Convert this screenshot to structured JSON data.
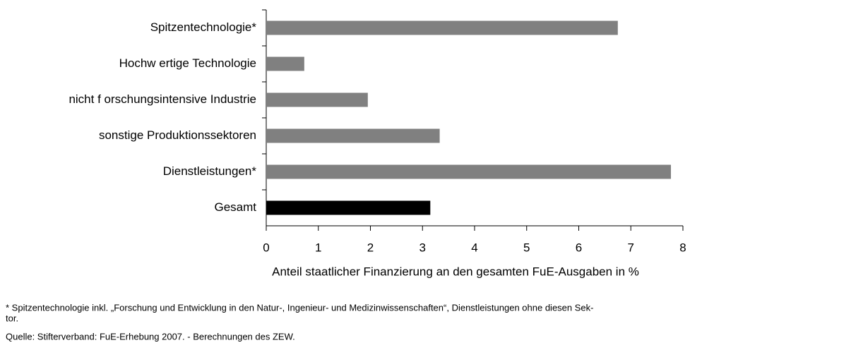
{
  "chart_data": {
    "type": "bar",
    "orientation": "horizontal",
    "categories": [
      "Spitzentechnologie*",
      "Hochw ertige Technologie",
      "nicht f orschungsintensive Industrie",
      "sonstige Produktionssektoren",
      "Dienstleistungen*",
      "Gesamt"
    ],
    "values": [
      6.75,
      0.73,
      1.95,
      3.33,
      7.77,
      3.15
    ],
    "colors": [
      "#808080",
      "#808080",
      "#808080",
      "#808080",
      "#808080",
      "#000000"
    ],
    "xlim": [
      0,
      8
    ],
    "xticks": [
      0,
      1,
      2,
      3,
      4,
      5,
      6,
      7,
      8
    ],
    "x_label": "Anteil staatlicher Finanzierung an den gesamten FuE-Ausgaben in %",
    "grid": false
  },
  "footnote": [
    "* Spitzentechnologie inkl. „Forschung und Entwicklung in den Natur-, Ingenieur- und Medizinwissenschaften“, Dienstleistungen ohne diesen Sek-",
    "tor."
  ],
  "source": "Quelle: Stifterverband: FuE-Erhebung 2007. - Berechnungen des ZEW."
}
